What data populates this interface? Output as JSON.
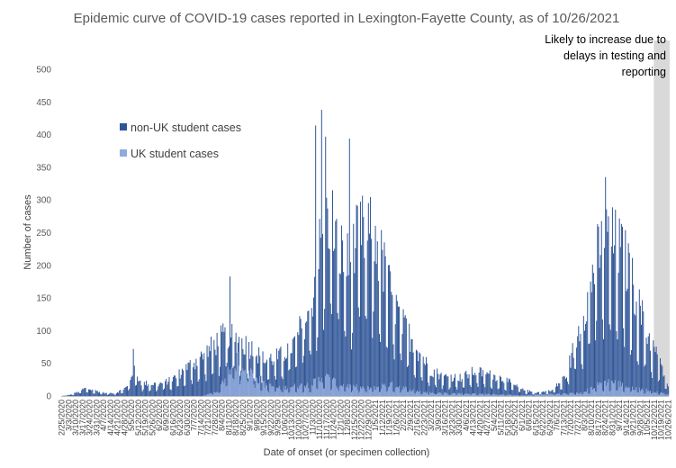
{
  "chart_data": {
    "type": "bar",
    "stacked": true,
    "title": "Epidemic curve of COVID-19 cases reported in Lexington-Fayette County, as of 10/26/2021",
    "xlabel": "Date of onset (or specimen collection)",
    "ylabel": "Number of cases",
    "ylim": [
      0,
      500
    ],
    "yticks": [
      0,
      50,
      100,
      150,
      200,
      250,
      300,
      350,
      400,
      450,
      500
    ],
    "x_range": [
      "2/25/2020",
      "10/26/2021"
    ],
    "grid": false,
    "legend_position": "upper-left inside plot",
    "shaded_region": {
      "from": "10/12/2021",
      "to": "10/26/2021",
      "label": "Likely to increase due to delays in testing and reporting",
      "color": "#d9d9d9"
    },
    "series": [
      {
        "name": "non-UK student cases",
        "color": "#2f5597",
        "profile_points": [
          [
            "2/25/2020",
            0
          ],
          [
            "3/5/2020",
            2
          ],
          [
            "3/12/2020",
            6
          ],
          [
            "3/20/2020",
            12
          ],
          [
            "3/30/2020",
            8
          ],
          [
            "4/10/2020",
            4
          ],
          [
            "4/20/2020",
            5
          ],
          [
            "5/1/2020",
            14
          ],
          [
            "5/7/2020",
            40
          ],
          [
            "5/15/2020",
            20
          ],
          [
            "6/1/2020",
            18
          ],
          [
            "6/15/2020",
            25
          ],
          [
            "7/1/2020",
            45
          ],
          [
            "7/15/2020",
            60
          ],
          [
            "7/25/2020",
            75
          ],
          [
            "8/1/2020",
            85
          ],
          [
            "8/10/2020",
            95
          ],
          [
            "8/20/2020",
            85
          ],
          [
            "9/1/2020",
            75
          ],
          [
            "9/15/2020",
            55
          ],
          [
            "10/1/2020",
            60
          ],
          [
            "10/15/2020",
            80
          ],
          [
            "11/1/2020",
            135
          ],
          [
            "11/10/2020",
            225
          ],
          [
            "11/20/2020",
            280
          ],
          [
            "12/1/2020",
            220
          ],
          [
            "12/10/2020",
            200
          ],
          [
            "12/20/2020",
            250
          ],
          [
            "1/1/2021",
            245
          ],
          [
            "1/10/2021",
            215
          ],
          [
            "1/20/2021",
            160
          ],
          [
            "2/1/2021",
            110
          ],
          [
            "2/15/2021",
            75
          ],
          [
            "3/1/2021",
            40
          ],
          [
            "3/15/2021",
            30
          ],
          [
            "4/1/2021",
            28
          ],
          [
            "4/15/2021",
            38
          ],
          [
            "5/1/2021",
            32
          ],
          [
            "5/15/2021",
            25
          ],
          [
            "6/1/2021",
            10
          ],
          [
            "6/15/2021",
            5
          ],
          [
            "7/1/2021",
            8
          ],
          [
            "7/15/2021",
            30
          ],
          [
            "8/1/2021",
            120
          ],
          [
            "8/15/2021",
            210
          ],
          [
            "8/25/2021",
            240
          ],
          [
            "9/5/2021",
            230
          ],
          [
            "9/15/2021",
            200
          ],
          [
            "9/25/2021",
            145
          ],
          [
            "10/5/2021",
            95
          ],
          [
            "10/15/2021",
            60
          ],
          [
            "10/26/2021",
            15
          ]
        ],
        "peaks": [
          [
            "11/6/2020",
            414
          ],
          [
            "11/12/2020",
            438
          ],
          [
            "11/16/2020",
            397
          ],
          [
            "12/10/2020",
            394
          ],
          [
            "8/12/2020",
            183
          ],
          [
            "8/24/2021",
            335
          ],
          [
            "5/7/2020",
            72
          ]
        ]
      },
      {
        "name": "UK student cases",
        "color": "#8faadc",
        "profile_points": [
          [
            "2/25/2020",
            0
          ],
          [
            "7/15/2020",
            0
          ],
          [
            "8/1/2020",
            8
          ],
          [
            "8/10/2020",
            40
          ],
          [
            "8/20/2020",
            55
          ],
          [
            "9/1/2020",
            40
          ],
          [
            "9/15/2020",
            18
          ],
          [
            "10/1/2020",
            12
          ],
          [
            "11/1/2020",
            18
          ],
          [
            "11/15/2020",
            30
          ],
          [
            "12/1/2020",
            18
          ],
          [
            "12/15/2020",
            14
          ],
          [
            "1/1/2021",
            12
          ],
          [
            "1/20/2021",
            18
          ],
          [
            "2/15/2021",
            8
          ],
          [
            "3/1/2021",
            5
          ],
          [
            "5/1/2021",
            3
          ],
          [
            "6/1/2021",
            1
          ],
          [
            "8/1/2021",
            5
          ],
          [
            "8/20/2021",
            20
          ],
          [
            "9/1/2021",
            22
          ],
          [
            "9/15/2021",
            14
          ],
          [
            "10/1/2021",
            10
          ],
          [
            "10/26/2021",
            3
          ]
        ]
      }
    ],
    "x_tick_labels": [
      "2/25/2020",
      "3/3/2020",
      "3/10/2020",
      "3/17/2020",
      "3/24/2020",
      "3/31/2020",
      "4/7/2020",
      "4/14/2020",
      "4/21/2020",
      "4/28/2020",
      "5/5/2020",
      "5/12/2020",
      "5/19/2020",
      "5/26/2020",
      "6/2/2020",
      "6/9/2020",
      "6/16/2020",
      "6/23/2020",
      "6/30/2020",
      "7/7/2020",
      "7/14/2020",
      "7/21/2020",
      "7/28/2020",
      "8/4/2020",
      "8/11/2020",
      "8/18/2020",
      "8/25/2020",
      "9/1/2020",
      "9/8/2020",
      "9/15/2020",
      "9/22/2020",
      "9/29/2020",
      "10/6/2020",
      "10/13/2020",
      "10/20/2020",
      "10/27/2020",
      "11/3/2020",
      "11/10/2020",
      "11/17/2020",
      "11/24/2020",
      "12/1/2020",
      "12/8/2020",
      "12/15/2020",
      "12/22/2020",
      "12/29/2020",
      "1/5/2021",
      "1/12/2021",
      "1/19/2021",
      "1/26/2021",
      "2/2/2021",
      "2/9/2021",
      "2/16/2021",
      "2/23/2021",
      "3/2/2021",
      "3/9/2021",
      "3/16/2021",
      "3/23/2021",
      "3/30/2021",
      "4/6/2021",
      "4/13/2021",
      "4/20/2021",
      "4/27/2021",
      "5/4/2021",
      "5/11/2021",
      "5/18/2021",
      "5/25/2021",
      "6/1/2021",
      "6/8/2021",
      "6/15/2021",
      "6/22/2021",
      "6/29/2021",
      "7/6/2021",
      "7/13/2021",
      "7/20/2021",
      "7/27/2021",
      "8/3/2021",
      "8/10/2021",
      "8/17/2021",
      "8/24/2021",
      "8/31/2021",
      "9/7/2021",
      "9/14/2021",
      "9/21/2021",
      "9/28/2021",
      "10/5/2021",
      "10/12/2021",
      "10/19/2021",
      "10/26/2021"
    ]
  }
}
